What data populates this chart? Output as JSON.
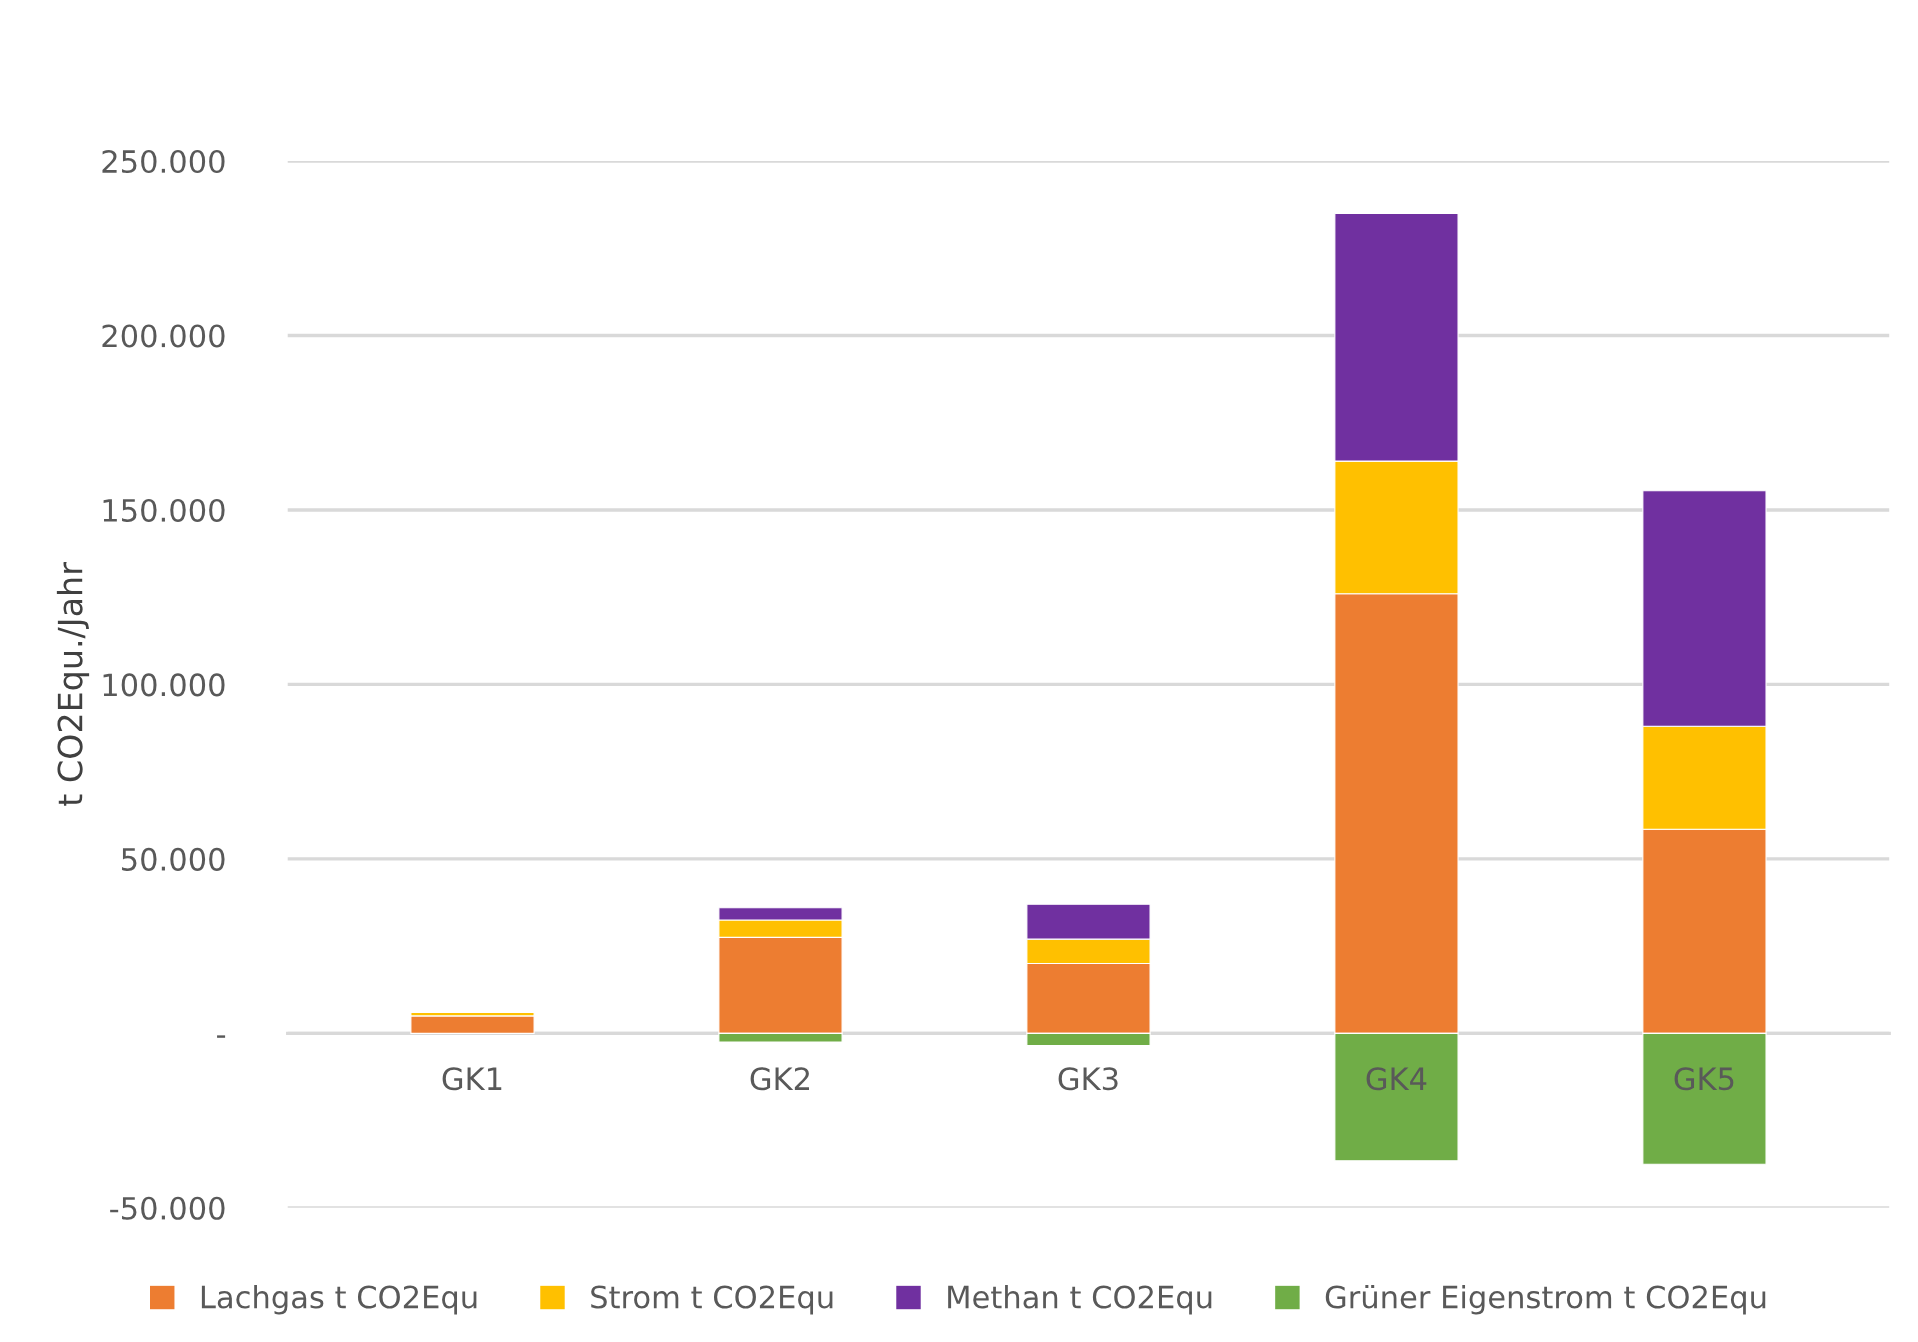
{
  "chart_data": {
    "type": "bar",
    "stacked": true,
    "ylabel": "t CO2Equ./Jahr",
    "categories": [
      "GK1",
      "GK2",
      "GK3",
      "GK4",
      "GK5"
    ],
    "series": [
      {
        "name": "Lachgas t CO2Equ",
        "color": "#ed7d31",
        "values": [
          5000,
          27500,
          20000,
          126000,
          58500
        ]
      },
      {
        "name": "Strom t CO2Equ",
        "color": "#ffc000",
        "values": [
          1000,
          5000,
          7000,
          38000,
          29500
        ]
      },
      {
        "name": "Methan t CO2Equ",
        "color": "#7030a0",
        "values": [
          null,
          3500,
          10000,
          71000,
          67500
        ]
      },
      {
        "name": "Grüner Eigenstrom t CO2Equ",
        "color": "#70ad47",
        "values": [
          null,
          -2500,
          -3500,
          -36500,
          -37500
        ]
      }
    ],
    "ylim": [
      -50000,
      250000
    ],
    "yticks": [
      {
        "value": -50000,
        "label": "-50.000"
      },
      {
        "value": 0,
        "label": "-"
      },
      {
        "value": 50000,
        "label": "50.000"
      },
      {
        "value": 100000,
        "label": "100.000"
      },
      {
        "value": 150000,
        "label": "150.000"
      },
      {
        "value": 200000,
        "label": "200.000"
      },
      {
        "value": 250000,
        "label": "250.000"
      }
    ],
    "grid": "y",
    "legend": "bottom"
  }
}
